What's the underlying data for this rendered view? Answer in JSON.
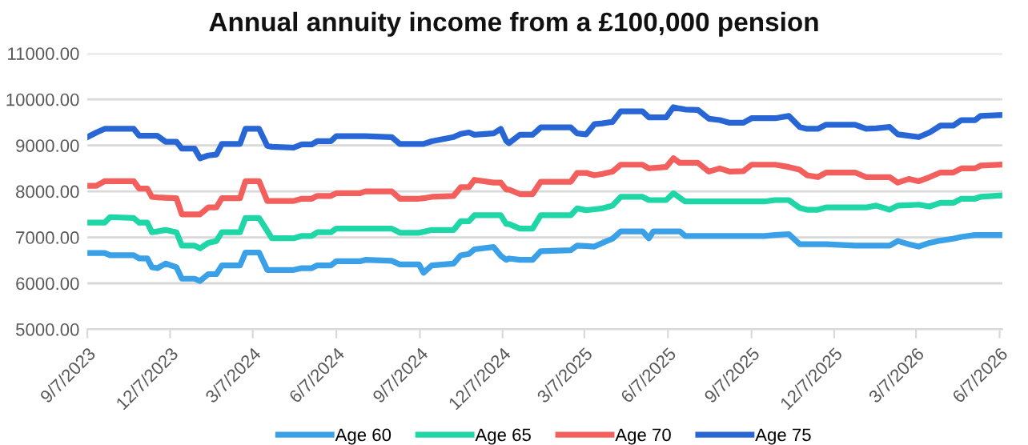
{
  "chart_data": {
    "type": "line",
    "title": "Annual annuity income from a £100,000 pension",
    "x": [
      "2023-09-07",
      "2023-09-17",
      "2023-09-26",
      "2023-10-02",
      "2023-10-28",
      "2023-11-03",
      "2023-11-12",
      "2023-11-17",
      "2023-11-23",
      "2023-12-02",
      "2023-12-14",
      "2023-12-20",
      "2024-01-03",
      "2024-01-09",
      "2024-01-18",
      "2024-01-27",
      "2024-02-02",
      "2024-02-22",
      "2024-02-28",
      "2024-03-14",
      "2024-03-23",
      "2024-03-28",
      "2024-04-21",
      "2024-04-30",
      "2024-05-11",
      "2024-05-17",
      "2024-06-01",
      "2024-06-07",
      "2024-07-03",
      "2024-07-09",
      "2024-08-07",
      "2024-08-16",
      "2024-09-06",
      "2024-09-11",
      "2024-09-20",
      "2024-10-14",
      "2024-10-22",
      "2024-10-31",
      "2024-11-06",
      "2024-11-27",
      "2024-12-05",
      "2024-12-11",
      "2024-12-14",
      "2024-12-26",
      "2025-01-09",
      "2025-01-18",
      "2025-02-20",
      "2025-02-27",
      "2025-03-09",
      "2025-03-18",
      "2025-03-27",
      "2025-04-07",
      "2025-04-16",
      "2025-05-10",
      "2025-05-17",
      "2025-05-22",
      "2025-06-05",
      "2025-06-13",
      "2025-06-20",
      "2025-06-26",
      "2025-07-10",
      "2025-07-22",
      "2025-08-03",
      "2025-08-14",
      "2025-08-29",
      "2025-09-07",
      "2025-09-21",
      "2025-10-03",
      "2025-10-18",
      "2025-10-30",
      "2025-11-07",
      "2025-11-19",
      "2025-11-28",
      "2025-12-30",
      "2026-01-11",
      "2026-01-22",
      "2026-02-06",
      "2026-02-15",
      "2026-02-27",
      "2026-03-10",
      "2026-03-22",
      "2026-04-03",
      "2026-04-17",
      "2026-04-26",
      "2026-05-11",
      "2026-05-17",
      "2026-06-09"
    ],
    "series": [
      {
        "name": "Age 60",
        "color": "#3aa0e8",
        "values": [
          6660,
          6660,
          6660,
          6610,
          6610,
          6540,
          6540,
          6350,
          6330,
          6430,
          6350,
          6100,
          6100,
          6050,
          6200,
          6200,
          6390,
          6390,
          6670,
          6670,
          6290,
          6290,
          6290,
          6330,
          6330,
          6390,
          6390,
          6480,
          6480,
          6510,
          6490,
          6410,
          6410,
          6230,
          6390,
          6430,
          6610,
          6640,
          6740,
          6790,
          6600,
          6510,
          6540,
          6510,
          6510,
          6700,
          6720,
          6820,
          6810,
          6800,
          6880,
          6970,
          7130,
          7130,
          6980,
          7130,
          7130,
          7130,
          7130,
          7030,
          7030,
          7030,
          7030,
          7030,
          7030,
          7030,
          7030,
          7050,
          7070,
          6850,
          6850,
          6850,
          6850,
          6820,
          6820,
          6820,
          6820,
          6920,
          6850,
          6800,
          6880,
          6930,
          6970,
          7010,
          7050,
          7050,
          7050
        ]
      },
      {
        "name": "Age 65",
        "color": "#1fd6a6",
        "values": [
          7320,
          7320,
          7320,
          7440,
          7420,
          7320,
          7320,
          7110,
          7130,
          7160,
          7110,
          6820,
          6820,
          6760,
          6880,
          6920,
          7110,
          7110,
          7420,
          7420,
          7140,
          6980,
          6980,
          7030,
          7030,
          7110,
          7110,
          7190,
          7190,
          7190,
          7190,
          7100,
          7100,
          7120,
          7160,
          7160,
          7350,
          7350,
          7480,
          7480,
          7480,
          7290,
          7290,
          7190,
          7190,
          7480,
          7480,
          7630,
          7590,
          7610,
          7630,
          7690,
          7880,
          7880,
          7810,
          7810,
          7810,
          7960,
          7860,
          7780,
          7780,
          7780,
          7780,
          7780,
          7780,
          7780,
          7780,
          7810,
          7810,
          7640,
          7600,
          7600,
          7650,
          7650,
          7650,
          7690,
          7600,
          7690,
          7700,
          7710,
          7670,
          7750,
          7750,
          7840,
          7840,
          7880,
          7910
        ]
      },
      {
        "name": "Age 70",
        "color": "#f25f5c",
        "values": [
          8120,
          8120,
          8220,
          8220,
          8220,
          8060,
          8060,
          7880,
          7870,
          7860,
          7850,
          7500,
          7500,
          7500,
          7650,
          7650,
          7850,
          7850,
          8220,
          8220,
          7790,
          7790,
          7790,
          7840,
          7840,
          7900,
          7900,
          7960,
          7960,
          8000,
          8000,
          7840,
          7840,
          7850,
          7880,
          7900,
          8090,
          8090,
          8250,
          8190,
          8190,
          8040,
          8040,
          7940,
          7940,
          8210,
          8210,
          8400,
          8400,
          8350,
          8380,
          8430,
          8580,
          8580,
          8500,
          8510,
          8530,
          8720,
          8620,
          8620,
          8620,
          8430,
          8500,
          8430,
          8440,
          8580,
          8580,
          8580,
          8530,
          8470,
          8350,
          8310,
          8410,
          8410,
          8310,
          8310,
          8310,
          8190,
          8270,
          8220,
          8310,
          8410,
          8410,
          8500,
          8500,
          8560,
          8580
        ]
      },
      {
        "name": "Age 75",
        "color": "#2766d4",
        "values": [
          9180,
          9280,
          9360,
          9360,
          9360,
          9210,
          9210,
          9210,
          9210,
          9080,
          9080,
          8930,
          8930,
          8720,
          8780,
          8800,
          9030,
          9030,
          9360,
          9360,
          8990,
          8970,
          8950,
          9020,
          9020,
          9090,
          9090,
          9200,
          9200,
          9200,
          9180,
          9030,
          9030,
          9030,
          9090,
          9180,
          9250,
          9280,
          9230,
          9260,
          9360,
          9100,
          9050,
          9230,
          9230,
          9390,
          9390,
          9260,
          9240,
          9460,
          9480,
          9510,
          9740,
          9740,
          9610,
          9610,
          9610,
          9830,
          9800,
          9780,
          9770,
          9580,
          9550,
          9490,
          9490,
          9590,
          9590,
          9590,
          9640,
          9400,
          9360,
          9360,
          9450,
          9450,
          9360,
          9370,
          9400,
          9240,
          9210,
          9180,
          9280,
          9430,
          9430,
          9550,
          9550,
          9640,
          9660
        ]
      }
    ],
    "xlim": [
      "2023-09-07",
      "2026-06-10"
    ],
    "xticks": [
      {
        "value": "2023-09-07",
        "label": "9/7/2023"
      },
      {
        "value": "2023-12-07",
        "label": "12/7/2023"
      },
      {
        "value": "2024-03-07",
        "label": "3/7/2024"
      },
      {
        "value": "2024-06-07",
        "label": "6/7/2024"
      },
      {
        "value": "2024-09-07",
        "label": "9/7/2024"
      },
      {
        "value": "2024-12-07",
        "label": "12/7/2024"
      },
      {
        "value": "2025-03-07",
        "label": "3/7/2025"
      },
      {
        "value": "2025-06-07",
        "label": "6/7/2025"
      },
      {
        "value": "2025-09-07",
        "label": "9/7/2025"
      },
      {
        "value": "2025-12-07",
        "label": "12/7/2025"
      },
      {
        "value": "2026-03-07",
        "label": "3/7/2026"
      },
      {
        "value": "2026-06-07",
        "label": "6/7/2026"
      }
    ],
    "ylim": [
      5000,
      11000
    ],
    "yticks": [
      {
        "value": 5000,
        "label": "5000.00"
      },
      {
        "value": 6000,
        "label": "6000.00"
      },
      {
        "value": 7000,
        "label": "7000.00"
      },
      {
        "value": 8000,
        "label": "8000.00"
      },
      {
        "value": 9000,
        "label": "9000.00"
      },
      {
        "value": 10000,
        "label": "10000.00"
      },
      {
        "value": 11000,
        "label": "11000.00"
      }
    ],
    "grid": "y",
    "legend": "bottom",
    "marker": "none",
    "line_style": "solid"
  }
}
